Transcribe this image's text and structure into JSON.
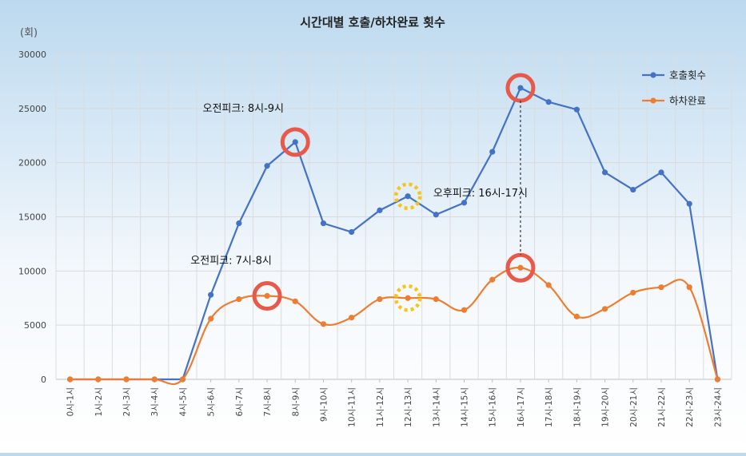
{
  "chart_data": {
    "type": "line",
    "title": "시간대별 호출/하차완료 횟수",
    "unit_label": "(회)",
    "ylim": [
      0,
      30000
    ],
    "yticks": [
      0,
      5000,
      10000,
      15000,
      20000,
      25000,
      30000
    ],
    "grid": true,
    "legend_position": "top-right",
    "categories": [
      "0시-1시",
      "1시-2시",
      "2시-3시",
      "3시-4시",
      "4시-5시",
      "5시-6시",
      "6시-7시",
      "7시-8시",
      "8시-9시",
      "9시-10시",
      "10시-11시",
      "11시-12시",
      "12시-13시",
      "13시-14시",
      "14시-15시",
      "15시-16시",
      "16시-17시",
      "17시-18시",
      "18시-19시",
      "19시-20시",
      "20시-21시",
      "21시-22시",
      "22시-23시",
      "23시-24시"
    ],
    "series": [
      {
        "name": "호출횟수",
        "color": "#4472c4",
        "smooth": false,
        "values": [
          0,
          0,
          0,
          0,
          0,
          7800,
          14400,
          19700,
          21900,
          14400,
          13600,
          15600,
          16900,
          15200,
          16300,
          21000,
          26900,
          25600,
          24900,
          19100,
          17500,
          19100,
          16200,
          0
        ]
      },
      {
        "name": "하차완료",
        "color": "#ed7d31",
        "smooth": true,
        "values": [
          0,
          0,
          0,
          0,
          0,
          5600,
          7400,
          7700,
          7200,
          5100,
          5700,
          7400,
          7500,
          7400,
          6400,
          9200,
          10300,
          8700,
          5800,
          6500,
          8000,
          8500,
          8500,
          0
        ]
      }
    ],
    "annotations": [
      {
        "text": "오전피크: 8시-9시",
        "series": 0,
        "index": 8,
        "marker": "peak-circle"
      },
      {
        "text": "오전피크: 7시-8시",
        "series": 1,
        "index": 7,
        "marker": "peak-circle"
      },
      {
        "text": "오후피크: 16시-17시",
        "series": 0,
        "index": 16,
        "marker": "peak-circle"
      },
      {
        "text": "",
        "series": 1,
        "index": 16,
        "marker": "peak-circle"
      },
      {
        "text": "",
        "series": 0,
        "index": 12,
        "marker": "dotted-circle"
      },
      {
        "text": "",
        "series": 1,
        "index": 12,
        "marker": "dotted-circle"
      }
    ],
    "highlight_colors": {
      "peak": "#e8594a",
      "dotted": "#f5c518"
    }
  }
}
